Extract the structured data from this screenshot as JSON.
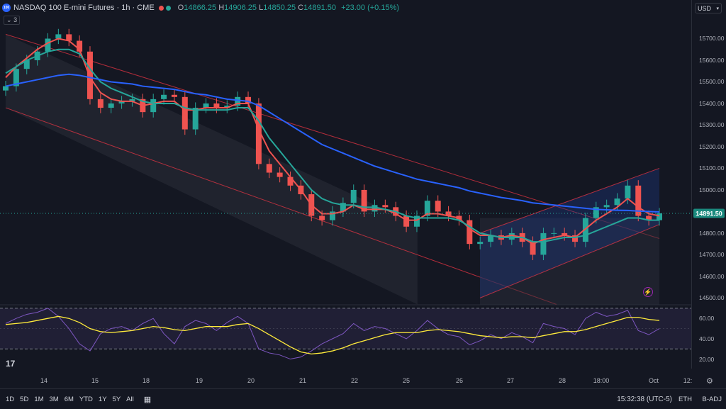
{
  "header": {
    "symbol_logo": "100",
    "title": "NASDAQ 100 E-mini Futures · 1h · CME",
    "open_label": "O",
    "open": "14866.25",
    "high_label": "H",
    "high": "14906.25",
    "low_label": "L",
    "low": "14850.25",
    "close_label": "C",
    "close": "14891.50",
    "change": "+23.00 (+0.15%)",
    "indicator_count": "3"
  },
  "currency": "USD",
  "colors": {
    "up": "#26a69a",
    "down": "#ef5350",
    "ema_fast": "#ef5350",
    "ema_mid": "#26a69a",
    "ema_slow": "#2962ff",
    "rsi": "#7e57c2",
    "rsi_ma": "#ffeb3b",
    "channel": "#f23645"
  },
  "chart_data": [
    {
      "type": "candlestick",
      "title": "NASDAQ 100 E-mini Futures · 1h · CME",
      "x_labels": [
        "14",
        "15",
        "18",
        "19",
        "20",
        "21",
        "22",
        "25",
        "26",
        "27",
        "28",
        "18:00",
        "Oct",
        "12:"
      ],
      "y_ticks": [
        14500,
        14600,
        14700,
        14800,
        14900,
        15000,
        15100,
        15200,
        15300,
        15400,
        15500,
        15600,
        15700
      ],
      "ylim": [
        14475,
        15800
      ],
      "last_price": 14891.5,
      "series": [
        {
          "name": "price",
          "values": [
            15480,
            15560,
            15600,
            15640,
            15700,
            15720,
            15690,
            15640,
            15420,
            15380,
            15400,
            15410,
            15420,
            15360,
            15420,
            15440,
            15430,
            15280,
            15380,
            15400,
            15380,
            15390,
            15430,
            15400,
            15120,
            15080,
            15060,
            15020,
            14980,
            14880,
            14860,
            14900,
            14940,
            15000,
            14900,
            14930,
            14920,
            14880,
            14830,
            14880,
            14950,
            14900,
            14880,
            14860,
            14750,
            14760,
            14790,
            14770,
            14800,
            14760,
            14700,
            14800,
            14800,
            14790,
            14760,
            14870,
            14920,
            14930,
            14960,
            15020,
            14880,
            14860,
            14891.5
          ]
        },
        {
          "name": "ema_fast",
          "values": [
            15520,
            15570,
            15610,
            15650,
            15680,
            15700,
            15690,
            15650,
            15520,
            15450,
            15420,
            15410,
            15410,
            15390,
            15400,
            15410,
            15410,
            15370,
            15370,
            15380,
            15380,
            15380,
            15400,
            15400,
            15280,
            15180,
            15120,
            15060,
            15000,
            14930,
            14890,
            14890,
            14900,
            14930,
            14910,
            14910,
            14910,
            14890,
            14860,
            14860,
            14890,
            14890,
            14880,
            14870,
            14820,
            14790,
            14790,
            14780,
            14790,
            14780,
            14750,
            14770,
            14780,
            14790,
            14780,
            14820,
            14860,
            14890,
            14920,
            14960,
            14920,
            14890,
            14880
          ]
        },
        {
          "name": "ema_mid",
          "values": [
            15540,
            15570,
            15600,
            15620,
            15640,
            15650,
            15650,
            15630,
            15560,
            15500,
            15470,
            15450,
            15430,
            15410,
            15400,
            15400,
            15400,
            15380,
            15370,
            15370,
            15370,
            15370,
            15380,
            15380,
            15320,
            15240,
            15180,
            15120,
            15060,
            15000,
            14960,
            14940,
            14930,
            14930,
            14920,
            14920,
            14910,
            14900,
            14880,
            14870,
            14870,
            14870,
            14870,
            14860,
            14830,
            14800,
            14790,
            14780,
            14780,
            14780,
            14760,
            14760,
            14770,
            14780,
            14780,
            14790,
            14810,
            14830,
            14850,
            14870,
            14870,
            14860,
            14860
          ]
        },
        {
          "name": "ema_slow",
          "values": [
            15480,
            15490,
            15500,
            15510,
            15520,
            15530,
            15535,
            15530,
            15520,
            15510,
            15500,
            15495,
            15490,
            15480,
            15475,
            15470,
            15465,
            15455,
            15445,
            15440,
            15430,
            15420,
            15415,
            15410,
            15390,
            15360,
            15330,
            15300,
            15270,
            15240,
            15210,
            15190,
            15170,
            15150,
            15130,
            15110,
            15095,
            15080,
            15065,
            15050,
            15040,
            15030,
            15020,
            15010,
            14995,
            14985,
            14975,
            14965,
            14958,
            14950,
            14940,
            14935,
            14930,
            14925,
            14920,
            14915,
            14910,
            14908,
            14906,
            14905,
            14902,
            14900,
            14898
          ]
        }
      ]
    },
    {
      "type": "line",
      "title": "RSI",
      "y_ticks": [
        20,
        40,
        60
      ],
      "ylim": [
        12,
        72
      ],
      "bands": [
        30,
        70
      ],
      "series": [
        {
          "name": "rsi",
          "values": [
            55,
            60,
            64,
            66,
            70,
            62,
            50,
            35,
            28,
            45,
            50,
            52,
            48,
            55,
            60,
            45,
            35,
            52,
            58,
            55,
            48,
            56,
            62,
            55,
            30,
            26,
            24,
            20,
            22,
            28,
            35,
            40,
            45,
            55,
            48,
            52,
            50,
            45,
            40,
            48,
            58,
            50,
            44,
            42,
            34,
            38,
            44,
            40,
            46,
            42,
            36,
            55,
            52,
            50,
            44,
            60,
            66,
            62,
            64,
            68,
            48,
            44,
            50
          ]
        },
        {
          "name": "rsi_ma",
          "values": [
            54,
            55,
            56,
            58,
            60,
            62,
            60,
            56,
            50,
            47,
            46,
            47,
            48,
            50,
            52,
            51,
            49,
            48,
            50,
            52,
            52,
            52,
            54,
            55,
            50,
            44,
            38,
            32,
            27,
            25,
            26,
            28,
            31,
            35,
            38,
            41,
            44,
            46,
            46,
            46,
            48,
            49,
            48,
            47,
            45,
            43,
            42,
            41,
            42,
            42,
            41,
            43,
            45,
            47,
            47,
            49,
            52,
            55,
            58,
            61,
            61,
            59,
            58
          ]
        }
      ]
    }
  ],
  "bottom": {
    "ranges": [
      "1D",
      "5D",
      "1M",
      "3M",
      "6M",
      "YTD",
      "1Y",
      "5Y",
      "All"
    ],
    "clock": "15:32:38 (UTC-5)",
    "session": "ETH",
    "adjust": "B-ADJ"
  }
}
